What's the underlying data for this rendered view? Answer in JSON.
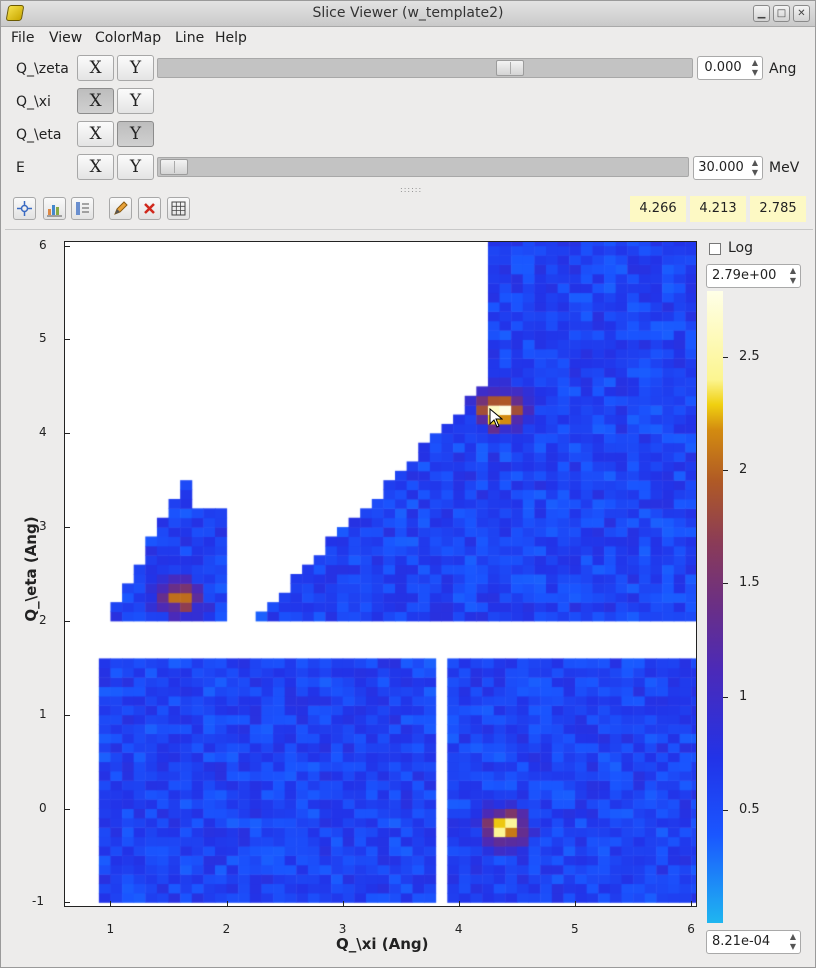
{
  "window": {
    "title": "Slice Viewer (w_template2)",
    "controls": [
      "minimize",
      "maximize",
      "close"
    ]
  },
  "menu": [
    "File",
    "View",
    "ColorMap",
    "Line",
    "Help"
  ],
  "dimensions": [
    {
      "name": "Q_\\zeta",
      "x_label": "X",
      "y_label": "Y",
      "active": "none",
      "has_slider": true,
      "value": "0.000",
      "unit": "Ang"
    },
    {
      "name": "Q_\\xi",
      "x_label": "X",
      "y_label": "Y",
      "active": "X",
      "has_slider": false
    },
    {
      "name": "Q_\\eta",
      "x_label": "X",
      "y_label": "Y",
      "active": "Y",
      "has_slider": false
    },
    {
      "name": "E",
      "x_label": "X",
      "y_label": "Y",
      "active": "none",
      "has_slider": true,
      "value": "30.000",
      "unit": "MeV"
    }
  ],
  "toolbar": {
    "icons": [
      "zoom-fit-icon",
      "colormap-autoscale-icon",
      "line-overlay-icon",
      "pencil-icon",
      "clear-line-icon",
      "grid-icon"
    ],
    "coordinates": [
      "4.266",
      "4.213",
      "2.785"
    ]
  },
  "plot": {
    "xlabel": "Q_\\xi (Ang)",
    "ylabel": "Q_\\eta (Ang)",
    "xticks": [
      "1",
      "2",
      "3",
      "4",
      "5",
      "6"
    ],
    "yticks": [
      "6",
      "5",
      "4",
      "3",
      "2",
      "1",
      "0",
      "-1"
    ]
  },
  "colorbar": {
    "log_label": "Log",
    "log_checked": false,
    "max_value": "2.79e+00",
    "min_value": "8.21e-04",
    "ticks": [
      "2.5",
      "2",
      "1.5",
      "1",
      "0.5"
    ],
    "colors": {
      "low": "#1fb6f0",
      "mid_low": "#2233e8",
      "mid": "#6a2f86",
      "mid_high": "#d38b10",
      "high": "#ffffe8"
    }
  },
  "chart_data": {
    "type": "heatmap",
    "xlabel": "Q_\\xi (Ang)",
    "ylabel": "Q_\\eta (Ang)",
    "xlim": [
      0.6,
      6.05
    ],
    "ylim": [
      -1.05,
      6.05
    ],
    "clim": [
      0.000821,
      2.79
    ],
    "regions": [
      {
        "x": [
          2.25,
          6.05
        ],
        "y": [
          2.0,
          6.05
        ],
        "description": "upper detector region"
      },
      {
        "x": [
          0.9,
          3.8
        ],
        "y": [
          -1.0,
          1.6
        ]
      },
      {
        "x": [
          3.9,
          6.05
        ],
        "y": [
          -1.0,
          1.6
        ]
      },
      {
        "x": [
          1.0,
          2.0
        ],
        "y": [
          2.0,
          3.7
        ]
      }
    ],
    "peaks": [
      {
        "x": 4.3,
        "y": 4.2,
        "value": 2.3
      },
      {
        "x": 4.35,
        "y": -0.25,
        "value": 2.0
      },
      {
        "x": 1.55,
        "y": 2.2,
        "value": 1.4
      }
    ]
  }
}
